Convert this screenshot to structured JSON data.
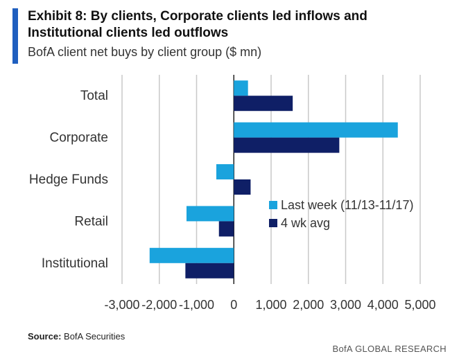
{
  "header": {
    "title": "Exhibit 8: By clients, Corporate clients led inflows and Institutional clients led outflows",
    "subtitle": "BofA client net buys by client group ($ mn)"
  },
  "footer": {
    "source_label": "Source:",
    "source_text": "BofA Securities",
    "brand": "BofA GLOBAL RESEARCH"
  },
  "colors": {
    "accent": "#1f5fbf",
    "last_week": "#1aa3dd",
    "avg": "#0f1f66"
  },
  "chart_data": {
    "type": "bar",
    "orientation": "horizontal",
    "categories": [
      "Total",
      "Corporate",
      "Hedge Funds",
      "Retail",
      "Institutional"
    ],
    "series": [
      {
        "name": "Last week (11/13-11/17)",
        "values": [
          380,
          4400,
          -470,
          -1270,
          -2260
        ]
      },
      {
        "name": "4 wk avg",
        "values": [
          1580,
          2830,
          450,
          -400,
          -1300
        ]
      }
    ],
    "xlim": [
      -3000,
      5000
    ],
    "xticks": [
      -3000,
      -2000,
      -1000,
      0,
      1000,
      2000,
      3000,
      4000,
      5000
    ],
    "xtick_labels": [
      "-3,000",
      "-2,000",
      "-1,000",
      "0",
      "1,000",
      "2,000",
      "3,000",
      "4,000",
      "5,000"
    ],
    "grid": true,
    "legend_position": "right"
  }
}
